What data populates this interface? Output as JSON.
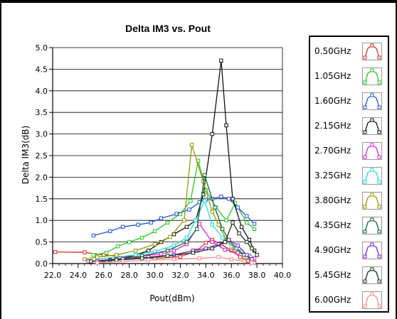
{
  "chart_data": {
    "type": "line",
    "title": "Delta IM3 vs. Pout",
    "xlabel": "Pout(dBm)",
    "ylabel": "Delta IM3(dB)",
    "xlim": [
      22.0,
      40.0
    ],
    "ylim": [
      0.0,
      5.0
    ],
    "x_ticks": [
      "22.0",
      "24.0",
      "26.0",
      "28.0",
      "30.0",
      "32.0",
      "34.0",
      "36.0",
      "38.0",
      "40.0"
    ],
    "y_ticks": [
      "0.0",
      "0.5",
      "1.0",
      "1.5",
      "2.0",
      "2.5",
      "3.0",
      "3.5",
      "4.0",
      "4.5",
      "5.0"
    ],
    "grid": true,
    "legend_position": "right",
    "series": [
      {
        "name": "0.50GHz",
        "color": "#e03020",
        "points": [
          [
            22.2,
            0.27
          ],
          [
            24.5,
            0.26
          ],
          [
            26.0,
            0.2
          ],
          [
            28.0,
            0.15
          ],
          [
            30.0,
            0.12
          ],
          [
            32.0,
            0.16
          ],
          [
            33.3,
            0.3
          ],
          [
            34.0,
            0.48
          ],
          [
            34.5,
            0.55
          ],
          [
            35.2,
            0.45
          ],
          [
            36.0,
            0.3
          ],
          [
            36.7,
            0.15
          ],
          [
            37.3,
            0.06
          ],
          [
            37.8,
            0.02
          ]
        ]
      },
      {
        "name": "1.05GHz",
        "color": "#22cc22",
        "points": [
          [
            25.2,
            0.2
          ],
          [
            26.2,
            0.25
          ],
          [
            27.1,
            0.4
          ],
          [
            28.0,
            0.5
          ],
          [
            29.0,
            0.6
          ],
          [
            30.0,
            0.75
          ],
          [
            31.0,
            0.95
          ],
          [
            32.0,
            1.15
          ],
          [
            32.8,
            1.45
          ],
          [
            33.4,
            2.38
          ],
          [
            34.0,
            1.7
          ],
          [
            34.8,
            1.3
          ],
          [
            35.6,
            1.0
          ],
          [
            36.3,
            1.4
          ],
          [
            37.2,
            0.95
          ],
          [
            37.8,
            0.8
          ]
        ]
      },
      {
        "name": "1.60GHz",
        "color": "#2255dd",
        "points": [
          [
            25.2,
            0.65
          ],
          [
            26.5,
            0.75
          ],
          [
            27.5,
            0.85
          ],
          [
            28.7,
            0.9
          ],
          [
            29.7,
            0.95
          ],
          [
            30.5,
            1.05
          ],
          [
            31.7,
            1.15
          ],
          [
            32.7,
            1.25
          ],
          [
            33.5,
            1.42
          ],
          [
            34.0,
            1.48
          ],
          [
            34.5,
            1.5
          ],
          [
            35.2,
            1.55
          ],
          [
            35.8,
            1.5
          ],
          [
            36.5,
            1.3
          ],
          [
            37.2,
            1.1
          ],
          [
            37.8,
            0.92
          ]
        ]
      },
      {
        "name": "2.15GHz",
        "color": "#111111",
        "points": [
          [
            25.5,
            0.05
          ],
          [
            26.5,
            0.08
          ],
          [
            27.5,
            0.12
          ],
          [
            28.5,
            0.2
          ],
          [
            29.5,
            0.3
          ],
          [
            30.5,
            0.5
          ],
          [
            31.5,
            0.68
          ],
          [
            32.5,
            0.85
          ],
          [
            33.2,
            1.0
          ],
          [
            33.8,
            1.6
          ],
          [
            34.5,
            3.0
          ],
          [
            35.2,
            4.7
          ],
          [
            35.6,
            3.2
          ],
          [
            36.1,
            1.5
          ],
          [
            36.8,
            0.85
          ],
          [
            37.4,
            0.55
          ],
          [
            37.8,
            0.3
          ]
        ]
      },
      {
        "name": "2.70GHz",
        "color": "#dd22dd",
        "points": [
          [
            24.8,
            0.05
          ],
          [
            26.0,
            0.08
          ],
          [
            27.5,
            0.12
          ],
          [
            29.0,
            0.18
          ],
          [
            30.5,
            0.22
          ],
          [
            31.5,
            0.3
          ],
          [
            32.5,
            0.45
          ],
          [
            33.5,
            0.92
          ],
          [
            34.5,
            0.5
          ],
          [
            35.5,
            0.32
          ],
          [
            36.5,
            0.25
          ],
          [
            37.4,
            0.18
          ],
          [
            37.8,
            0.12
          ]
        ]
      },
      {
        "name": "3.25GHz",
        "color": "#22dddd",
        "points": [
          [
            25.5,
            0.1
          ],
          [
            27.0,
            0.15
          ],
          [
            28.5,
            0.2
          ],
          [
            30.0,
            0.28
          ],
          [
            31.5,
            0.42
          ],
          [
            32.5,
            0.6
          ],
          [
            33.2,
            1.0
          ],
          [
            33.9,
            1.45
          ],
          [
            34.5,
            0.9
          ],
          [
            35.3,
            0.6
          ],
          [
            36.0,
            0.4
          ],
          [
            36.8,
            0.28
          ],
          [
            37.5,
            0.15
          ]
        ]
      },
      {
        "name": "3.80GHz",
        "color": "#999900",
        "points": [
          [
            24.5,
            0.1
          ],
          [
            25.5,
            0.15
          ],
          [
            27.0,
            0.2
          ],
          [
            28.5,
            0.3
          ],
          [
            30.0,
            0.45
          ],
          [
            31.2,
            0.62
          ],
          [
            32.3,
            1.0
          ],
          [
            32.9,
            2.75
          ],
          [
            33.8,
            1.9
          ],
          [
            34.5,
            1.2
          ],
          [
            35.0,
            0.9
          ],
          [
            35.6,
            0.55
          ],
          [
            36.3,
            0.35
          ],
          [
            37.2,
            0.15
          ]
        ]
      },
      {
        "name": "4.35GHz",
        "color": "#116633",
        "points": [
          [
            25.0,
            0.05
          ],
          [
            27.0,
            0.1
          ],
          [
            29.0,
            0.18
          ],
          [
            31.0,
            0.3
          ],
          [
            32.5,
            0.5
          ],
          [
            33.3,
            0.8
          ],
          [
            33.9,
            2.05
          ],
          [
            34.7,
            1.3
          ],
          [
            35.3,
            0.8
          ],
          [
            35.8,
            0.55
          ],
          [
            36.4,
            0.35
          ],
          [
            37.0,
            0.2
          ],
          [
            37.6,
            0.1
          ]
        ]
      },
      {
        "name": "4.90GHz",
        "color": "#7722dd",
        "points": [
          [
            25.5,
            0.05
          ],
          [
            27.5,
            0.1
          ],
          [
            29.5,
            0.15
          ],
          [
            31.5,
            0.2
          ],
          [
            33.0,
            0.3
          ],
          [
            34.0,
            0.35
          ],
          [
            35.0,
            0.45
          ],
          [
            35.8,
            0.55
          ],
          [
            36.5,
            0.42
          ],
          [
            37.2,
            0.2
          ],
          [
            37.6,
            0.1
          ]
        ]
      },
      {
        "name": "5.45GHz",
        "color": "#113311",
        "points": [
          [
            25.0,
            0.05
          ],
          [
            27.0,
            0.08
          ],
          [
            29.0,
            0.12
          ],
          [
            31.0,
            0.18
          ],
          [
            33.0,
            0.25
          ],
          [
            34.5,
            0.35
          ],
          [
            35.5,
            0.5
          ],
          [
            36.1,
            0.95
          ],
          [
            36.6,
            0.7
          ],
          [
            37.2,
            0.5
          ],
          [
            37.6,
            0.35
          ],
          [
            38.0,
            0.2
          ]
        ]
      },
      {
        "name": "6.00GHz",
        "color": "#ff8888",
        "points": [
          [
            25.5,
            0.02
          ],
          [
            27.5,
            0.05
          ],
          [
            29.5,
            0.08
          ],
          [
            31.5,
            0.1
          ],
          [
            33.5,
            0.12
          ],
          [
            35.0,
            0.15
          ],
          [
            36.0,
            0.1
          ],
          [
            37.0,
            0.05
          ],
          [
            37.6,
            0.02
          ]
        ]
      }
    ]
  }
}
